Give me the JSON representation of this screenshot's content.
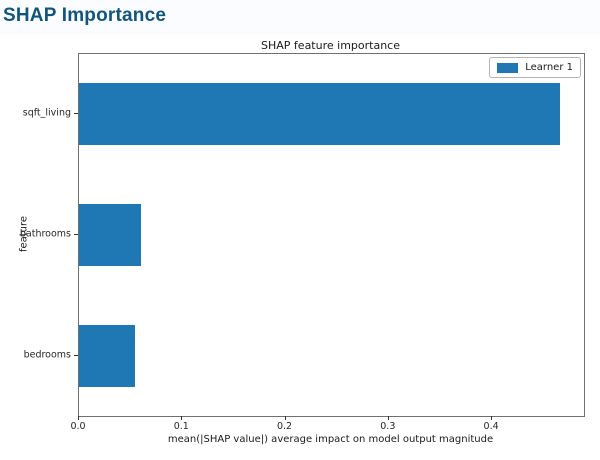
{
  "header": {
    "title": "SHAP Importance"
  },
  "colors": {
    "page_title": "#11557e",
    "header_bg": "#fbfcff",
    "bar": "#1f77b4",
    "spine": "#707070",
    "text": "#1a1a1a"
  },
  "chart_data": {
    "type": "bar",
    "orientation": "horizontal",
    "title": "SHAP feature importance",
    "xlabel": "mean(|SHAP value|) average impact on model output magnitude",
    "ylabel": "feature",
    "categories": [
      "sqft_living",
      "bathrooms",
      "bedrooms"
    ],
    "series": [
      {
        "name": "Learner 1",
        "values": [
          0.466,
          0.06,
          0.054
        ],
        "color": "#1f77b4"
      }
    ],
    "xlim": [
      0,
      0.489
    ],
    "xticks": [
      "0.0",
      "0.1",
      "0.2",
      "0.3",
      "0.4"
    ],
    "xtick_values": [
      0.0,
      0.1,
      0.2,
      0.3,
      0.4
    ],
    "grid": false,
    "legend": {
      "position": "upper right",
      "entries": [
        {
          "label": "Learner 1",
          "color": "#1f77b4"
        }
      ]
    }
  }
}
